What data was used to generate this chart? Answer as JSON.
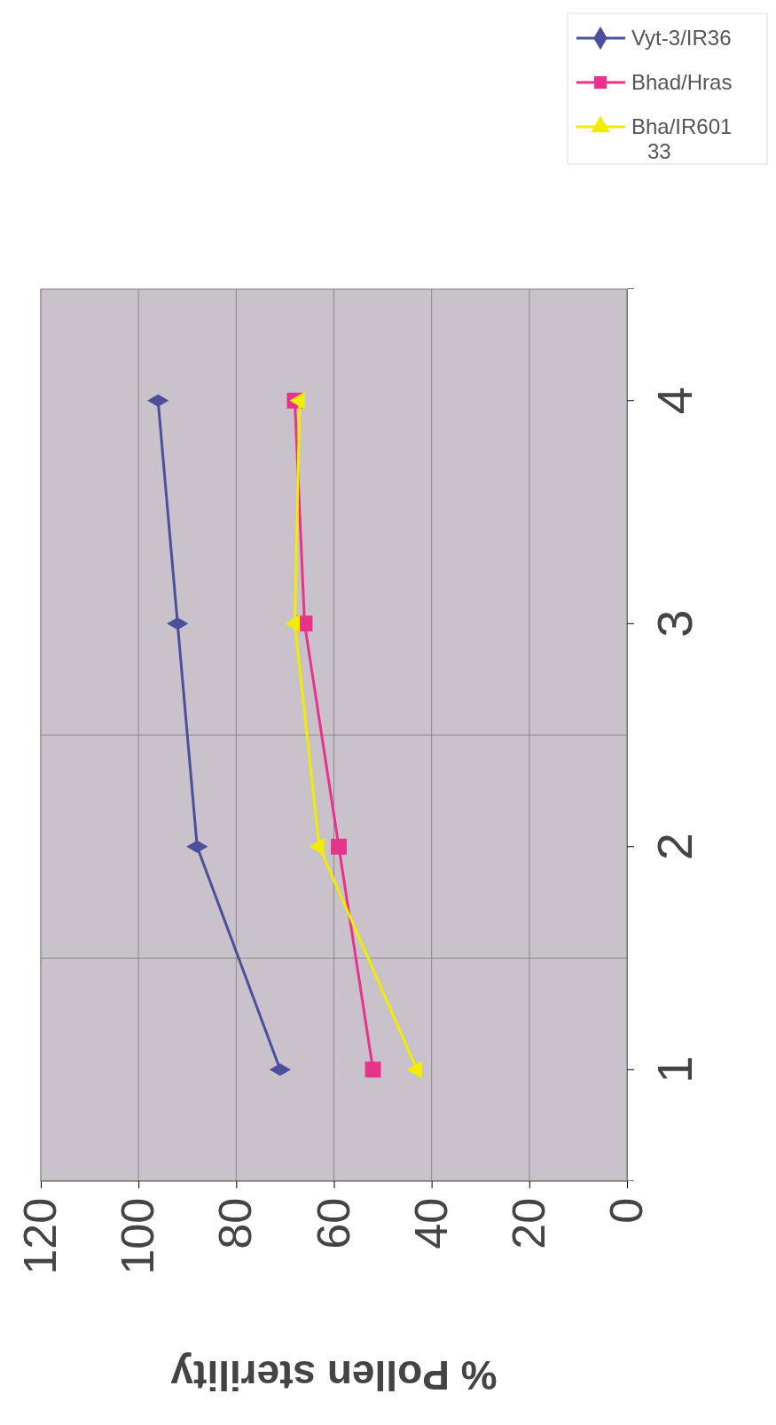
{
  "chart_data": {
    "type": "line",
    "orientation": "horizontal",
    "xlabel": "% Pollen sterility",
    "categories": [
      "4",
      "3",
      "2",
      "1"
    ],
    "xlim": [
      120,
      0
    ],
    "xticks": [
      120,
      100,
      80,
      60,
      40,
      20,
      0
    ],
    "grid": true,
    "legend": "top right",
    "series": [
      {
        "name": "Vyt-3/IR36",
        "color": "#4b4f9c",
        "marker": "diamond",
        "values": [
          96,
          92,
          88,
          71
        ]
      },
      {
        "name": "Bhad/Hras",
        "color": "#e8328c",
        "marker": "square",
        "values": [
          68,
          66,
          59,
          52
        ]
      },
      {
        "name": "Bha/IR60133",
        "color": "#f2ec00",
        "marker": "triangle",
        "values": [
          67,
          68,
          63,
          43
        ]
      }
    ]
  }
}
